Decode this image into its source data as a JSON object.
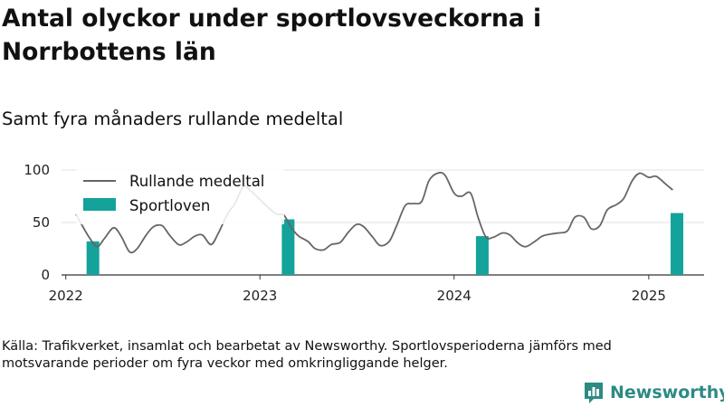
{
  "chart_data": {
    "type": "line",
    "title": "Antal olyckor under sportlovsveckorna i Norrbottens län",
    "subtitle": "Samt fyra månaders rullande medeltal",
    "ylim": [
      0,
      100
    ],
    "yticks": [
      0,
      50,
      100
    ],
    "xticks": [
      "2022",
      "2023",
      "2024",
      "2025"
    ],
    "legend": {
      "position": "top-left",
      "line_label": "Rullande medeltal",
      "bar_label": "Sportloven"
    },
    "colors": {
      "line": "#666666",
      "bar": "#13a39a",
      "axis": "#333333",
      "grid": "#e0e0e0"
    },
    "series": [
      {
        "name": "Rullande medeltal",
        "kind": "line",
        "points": [
          [
            "2022-01-20",
            58
          ],
          [
            "2022-02-01",
            47
          ],
          [
            "2022-02-15",
            35
          ],
          [
            "2022-03-01",
            27
          ],
          [
            "2022-03-15",
            35
          ],
          [
            "2022-04-01",
            45
          ],
          [
            "2022-04-15",
            37
          ],
          [
            "2022-05-01",
            22
          ],
          [
            "2022-05-15",
            25
          ],
          [
            "2022-06-01",
            38
          ],
          [
            "2022-06-15",
            46
          ],
          [
            "2022-07-01",
            47
          ],
          [
            "2022-07-15",
            38
          ],
          [
            "2022-08-01",
            29
          ],
          [
            "2022-08-15",
            31
          ],
          [
            "2022-09-01",
            37
          ],
          [
            "2022-09-15",
            38
          ],
          [
            "2022-10-01",
            29
          ],
          [
            "2022-10-15",
            40
          ],
          [
            "2022-11-01",
            58
          ],
          [
            "2022-11-15",
            68
          ],
          [
            "2022-12-01",
            84
          ],
          [
            "2022-12-15",
            80
          ],
          [
            "2023-01-01",
            72
          ],
          [
            "2023-01-15",
            65
          ],
          [
            "2023-02-01",
            58
          ],
          [
            "2023-02-15",
            57
          ],
          [
            "2023-03-01",
            45
          ],
          [
            "2023-03-15",
            37
          ],
          [
            "2023-04-01",
            32
          ],
          [
            "2023-04-15",
            25
          ],
          [
            "2023-05-01",
            24
          ],
          [
            "2023-05-15",
            29
          ],
          [
            "2023-06-01",
            31
          ],
          [
            "2023-06-15",
            40
          ],
          [
            "2023-07-01",
            48
          ],
          [
            "2023-07-15",
            46
          ],
          [
            "2023-08-01",
            36
          ],
          [
            "2023-08-15",
            28
          ],
          [
            "2023-09-01",
            32
          ],
          [
            "2023-09-15",
            47
          ],
          [
            "2023-10-01",
            66
          ],
          [
            "2023-10-15",
            68
          ],
          [
            "2023-11-01",
            70
          ],
          [
            "2023-11-15",
            90
          ],
          [
            "2023-12-01",
            97
          ],
          [
            "2023-12-15",
            95
          ],
          [
            "2024-01-01",
            78
          ],
          [
            "2024-01-15",
            75
          ],
          [
            "2024-02-01",
            78
          ],
          [
            "2024-02-15",
            55
          ],
          [
            "2024-03-01",
            36
          ],
          [
            "2024-03-15",
            36
          ],
          [
            "2024-04-01",
            40
          ],
          [
            "2024-04-15",
            38
          ],
          [
            "2024-05-01",
            30
          ],
          [
            "2024-05-15",
            27
          ],
          [
            "2024-06-01",
            32
          ],
          [
            "2024-06-15",
            37
          ],
          [
            "2024-07-01",
            39
          ],
          [
            "2024-07-15",
            40
          ],
          [
            "2024-08-01",
            42
          ],
          [
            "2024-08-15",
            55
          ],
          [
            "2024-09-01",
            55
          ],
          [
            "2024-09-15",
            44
          ],
          [
            "2024-10-01",
            47
          ],
          [
            "2024-10-15",
            62
          ],
          [
            "2024-11-01",
            67
          ],
          [
            "2024-11-15",
            73
          ],
          [
            "2024-12-01",
            90
          ],
          [
            "2024-12-15",
            97
          ],
          [
            "2025-01-01",
            93
          ],
          [
            "2025-01-15",
            94
          ],
          [
            "2025-02-01",
            87
          ],
          [
            "2025-02-15",
            81
          ]
        ]
      },
      {
        "name": "Sportloven",
        "kind": "bar",
        "points": [
          [
            "2022-02-21",
            32
          ],
          [
            "2023-02-23",
            53
          ],
          [
            "2024-02-23",
            37
          ],
          [
            "2025-02-23",
            59
          ]
        ]
      }
    ]
  },
  "source_text": "Källa: Trafikverket, insamlat och bearbetat av Newsworthy. Sportlovsperioderna jämförs med motsvarande perioder om fyra veckor med omkringliggande helger.",
  "brand": {
    "name": "Newsworthy",
    "logo_icon": "bar-chart-logo-icon",
    "color": "#2d8a83"
  }
}
